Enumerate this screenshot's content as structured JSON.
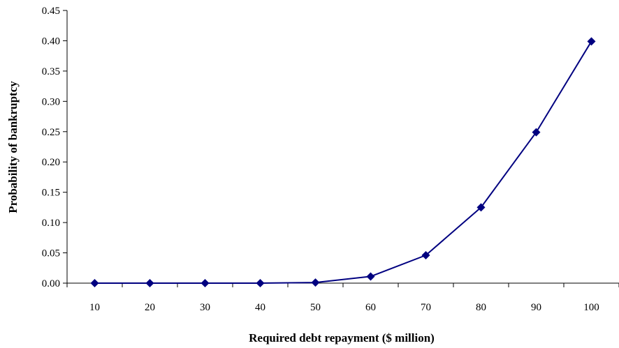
{
  "chart_data": {
    "type": "line",
    "title": "",
    "xlabel": "Required debt repayment ($ million)",
    "ylabel": "Probability of bankruptcy",
    "categories": [
      "10",
      "20",
      "30",
      "40",
      "50",
      "60",
      "70",
      "80",
      "90",
      "100"
    ],
    "series": [
      {
        "values": [
          0.0,
          0.0,
          0.0,
          0.0,
          0.001,
          0.011,
          0.046,
          0.125,
          0.249,
          0.399
        ]
      }
    ],
    "ylim": [
      0,
      0.45
    ],
    "yticks": [
      "0.00",
      "0.05",
      "0.10",
      "0.15",
      "0.20",
      "0.25",
      "0.30",
      "0.35",
      "0.40",
      "0.45"
    ],
    "grid": false,
    "legend": "none",
    "colors": {
      "line": "#000080",
      "marker": "#000080",
      "axis": "#000000"
    }
  }
}
